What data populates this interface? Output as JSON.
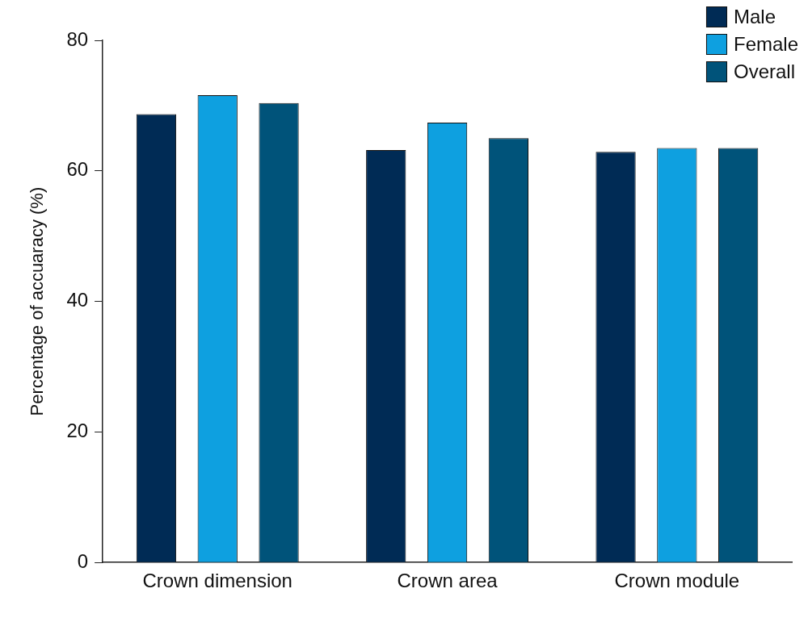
{
  "chart_data": {
    "type": "bar",
    "y_label": "Percentage of accuaracy (%)",
    "categories": [
      "Crown dimension",
      "Crown area",
      "Crown module"
    ],
    "series": [
      {
        "name": "Male",
        "color": "#002b55",
        "values": [
          68.7,
          63.2,
          62.9
        ]
      },
      {
        "name": "Female",
        "color": "#0ea0e0",
        "values": [
          71.6,
          67.4,
          63.5
        ]
      },
      {
        "name": "Overall",
        "color": "#00537a",
        "values": [
          70.4,
          65.0,
          63.5
        ]
      }
    ],
    "ylim": [
      0,
      80
    ],
    "yticks": [
      0,
      20,
      40,
      60,
      80
    ],
    "grid": false,
    "legend": "upper right"
  }
}
